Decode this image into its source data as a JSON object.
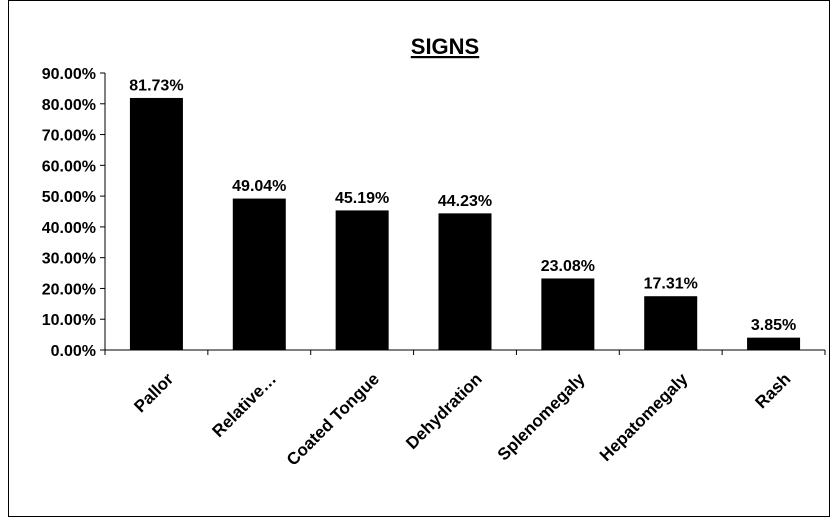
{
  "chart_data": {
    "type": "bar",
    "title": "SIGNS",
    "categories": [
      "Pallor",
      "Relative…",
      "Coated Tongue",
      "Dehydration",
      "Splenomegaly",
      "Hepatomegaly",
      "Rash"
    ],
    "values": [
      81.73,
      49.04,
      45.19,
      44.23,
      23.08,
      17.31,
      3.85
    ],
    "data_labels": [
      "81.73%",
      "49.04%",
      "45.19%",
      "44.23%",
      "23.08%",
      "17.31%",
      "3.85%"
    ],
    "y_ticks": [
      "0.00%",
      "10.00%",
      "20.00%",
      "30.00%",
      "40.00%",
      "50.00%",
      "60.00%",
      "70.00%",
      "80.00%",
      "90.00%"
    ],
    "xlabel": "",
    "ylabel": "",
    "ylim": [
      0,
      90
    ],
    "grid": false,
    "legend": "none",
    "bar_color": "#000000"
  }
}
